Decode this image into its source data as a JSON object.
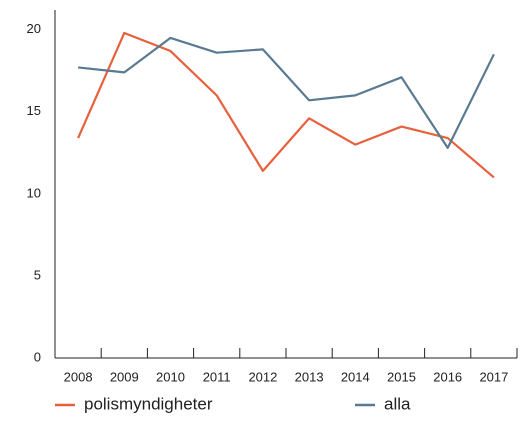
{
  "chart_data": {
    "type": "line",
    "categories": [
      "2008",
      "2009",
      "2010",
      "2011",
      "2012",
      "2013",
      "2014",
      "2015",
      "2016",
      "2017"
    ],
    "series": [
      {
        "name": "polismyndigheter",
        "color": "#e8603c",
        "values": [
          13.4,
          19.8,
          18.7,
          16.0,
          11.4,
          14.6,
          13.0,
          14.1,
          13.4,
          11.0
        ]
      },
      {
        "name": "alla",
        "color": "#5a7a91",
        "values": [
          17.7,
          17.4,
          19.5,
          18.6,
          18.8,
          15.7,
          16.0,
          17.1,
          12.8,
          18.5
        ]
      }
    ],
    "ylim": [
      0,
      21.2
    ],
    "yticks": [
      0,
      5,
      10,
      15,
      20
    ],
    "grid": false,
    "legend": "bottom"
  }
}
